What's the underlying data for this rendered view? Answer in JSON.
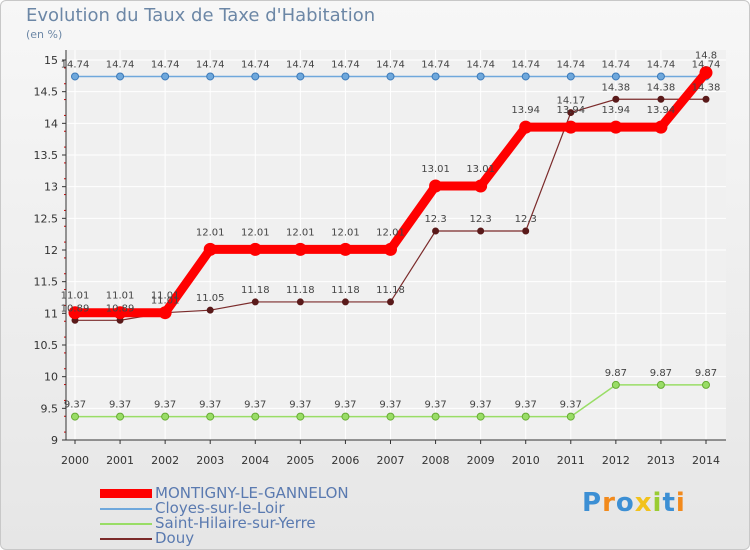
{
  "title": "Evolution du Taux de Taxe d'Habitation",
  "subtitle": "(en %)",
  "logo": {
    "text": "Proxiti"
  },
  "colors": {
    "background": "#f0f0f0",
    "grid": "#ffffff",
    "axis": "#333333"
  },
  "chart_data": {
    "type": "line",
    "title": "Evolution du Taux de Taxe d'Habitation",
    "subtitle": "(en %)",
    "xlabel": "",
    "ylabel": "",
    "ylim": [
      9,
      15
    ],
    "yticks": [
      "9",
      "9.5",
      "10",
      "10.5",
      "11",
      "11.5",
      "12",
      "12.5",
      "13",
      "13.5",
      "14",
      "14.5",
      "15"
    ],
    "categories": [
      "2000",
      "2001",
      "2002",
      "2003",
      "2004",
      "2005",
      "2006",
      "2007",
      "2008",
      "2009",
      "2010",
      "2011",
      "2012",
      "2013",
      "2014"
    ],
    "grid": true,
    "legend_position": "bottom-left",
    "series": [
      {
        "name": "MONTIGNY-LE-GANNELON",
        "color": "#ff0000",
        "values": [
          11.01,
          11.01,
          11.01,
          12.01,
          12.01,
          12.01,
          12.01,
          12.01,
          13.01,
          13.01,
          13.94,
          13.94,
          13.94,
          13.94,
          14.8
        ],
        "labels": [
          "11.01",
          "11.01",
          "11.01",
          "12.01",
          "12.01",
          "12.01",
          "12.01",
          "12.01",
          "13.01",
          "13.01",
          "13.94",
          "13.94",
          "13.94",
          "13.94",
          "14.8"
        ]
      },
      {
        "name": "Cloyes-sur-le-Loir",
        "color": "#6fa8dc",
        "values": [
          14.74,
          14.74,
          14.74,
          14.74,
          14.74,
          14.74,
          14.74,
          14.74,
          14.74,
          14.74,
          14.74,
          14.74,
          14.74,
          14.74,
          14.74
        ],
        "labels": [
          "14.74",
          "14.74",
          "14.74",
          "14.74",
          "14.74",
          "14.74",
          "14.74",
          "14.74",
          "14.74",
          "14.74",
          "14.74",
          "14.74",
          "14.74",
          "14.74",
          "14.74"
        ]
      },
      {
        "name": "Saint-Hilaire-sur-Yerre",
        "color": "#99dd66",
        "values": [
          9.37,
          9.37,
          9.37,
          9.37,
          9.37,
          9.37,
          9.37,
          9.37,
          9.37,
          9.37,
          9.37,
          9.37,
          9.87,
          9.87,
          9.87
        ],
        "labels": [
          "9.37",
          "9.37",
          "9.37",
          "9.37",
          "9.37",
          "9.37",
          "9.37",
          "9.37",
          "9.37",
          "9.37",
          "9.37",
          "9.37",
          "9.87",
          "9.87",
          "9.87"
        ]
      },
      {
        "name": "Douy",
        "color": "#7b2b2b",
        "values": [
          10.89,
          10.89,
          11.01,
          11.05,
          11.18,
          11.18,
          11.18,
          11.18,
          12.3,
          12.3,
          12.3,
          14.17,
          14.38,
          14.38,
          14.38
        ],
        "labels": [
          "10.89",
          "10.89",
          "11.01",
          "11.05",
          "11.18",
          "11.18",
          "11.18",
          "11.18",
          "12.3",
          "12.3",
          "12.3",
          "14.17",
          "14.38",
          "14.38",
          "14.38"
        ]
      }
    ]
  }
}
